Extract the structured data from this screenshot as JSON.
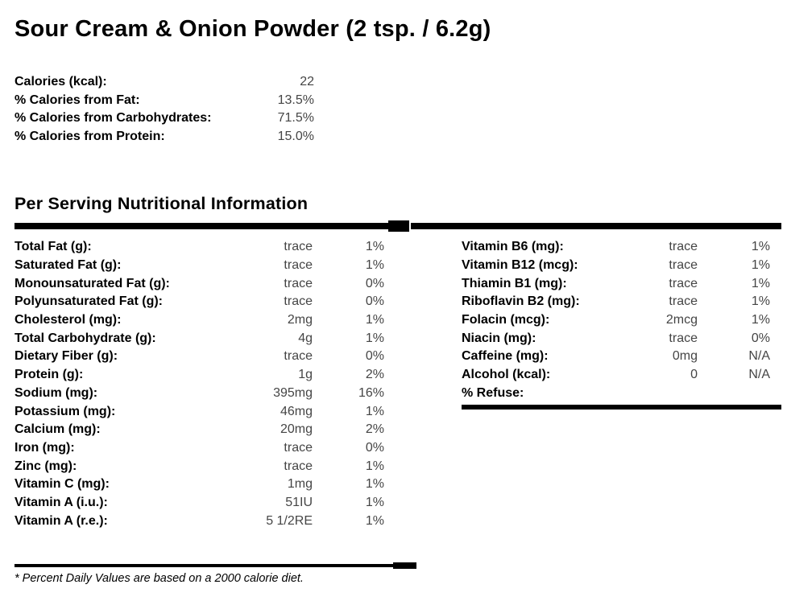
{
  "title": "Sour Cream & Onion Powder (2 tsp. / 6.2g)",
  "summary": {
    "rows": [
      {
        "label": "Calories (kcal):",
        "value": "22"
      },
      {
        "label": "% Calories from Fat:",
        "value": "13.5%"
      },
      {
        "label": "% Calories from Carbohydrates:",
        "value": "71.5%"
      },
      {
        "label": "% Calories from Protein:",
        "value": "15.0%"
      }
    ]
  },
  "section": {
    "heading": "Per Serving Nutritional Information"
  },
  "left_rows": [
    {
      "label": "Total Fat (g):",
      "value": "trace",
      "pct": "1%"
    },
    {
      "label": "Saturated Fat (g):",
      "value": "trace",
      "pct": "1%"
    },
    {
      "label": "Monounsaturated Fat (g):",
      "value": "trace",
      "pct": "0%"
    },
    {
      "label": "Polyunsaturated Fat (g):",
      "value": "trace",
      "pct": "0%"
    },
    {
      "label": "Cholesterol (mg):",
      "value": "2mg",
      "pct": "1%"
    },
    {
      "label": "Total Carbohydrate (g):",
      "value": "4g",
      "pct": "1%"
    },
    {
      "label": "Dietary Fiber (g):",
      "value": "trace",
      "pct": "0%"
    },
    {
      "label": "Protein (g):",
      "value": "1g",
      "pct": "2%"
    },
    {
      "label": "Sodium (mg):",
      "value": "395mg",
      "pct": "16%"
    },
    {
      "label": "Potassium (mg):",
      "value": "46mg",
      "pct": "1%"
    },
    {
      "label": "Calcium (mg):",
      "value": "20mg",
      "pct": "2%"
    },
    {
      "label": "Iron (mg):",
      "value": "trace",
      "pct": "0%"
    },
    {
      "label": "Zinc (mg):",
      "value": "trace",
      "pct": "1%"
    },
    {
      "label": "Vitamin C (mg):",
      "value": "1mg",
      "pct": "1%"
    },
    {
      "label": "Vitamin A (i.u.):",
      "value": "51IU",
      "pct": "1%"
    },
    {
      "label": "Vitamin A (r.e.):",
      "value": "5 1/2RE",
      "pct": "1%"
    }
  ],
  "right_rows": [
    {
      "label": "Vitamin B6 (mg):",
      "value": "trace",
      "pct": "1%"
    },
    {
      "label": "Vitamin B12 (mcg):",
      "value": "trace",
      "pct": "1%"
    },
    {
      "label": "Thiamin B1 (mg):",
      "value": "trace",
      "pct": "1%"
    },
    {
      "label": "Riboflavin B2 (mg):",
      "value": "trace",
      "pct": "1%"
    },
    {
      "label": "Folacin (mcg):",
      "value": "2mcg",
      "pct": "1%"
    },
    {
      "label": "Niacin (mg):",
      "value": "trace",
      "pct": "0%"
    },
    {
      "label": "Caffeine (mg):",
      "value": "0mg",
      "pct": "N/A"
    },
    {
      "label": "Alcohol (kcal):",
      "value": "0",
      "pct": "N/A"
    },
    {
      "label": "% Refuse:",
      "value": "",
      "pct": ""
    }
  ],
  "footnote": "* Percent Daily Values are based on a 2000 calorie diet.",
  "colors": {
    "background": "#ffffff",
    "text": "#000000",
    "value_text": "#454545",
    "bar": "#000000"
  }
}
